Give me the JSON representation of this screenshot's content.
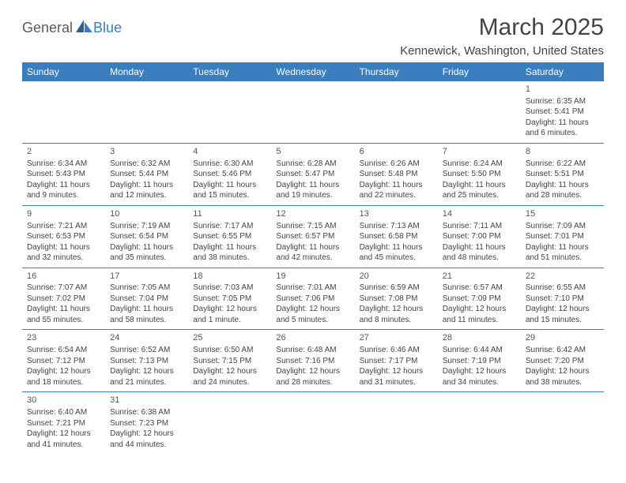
{
  "logo": {
    "part1": "General",
    "part2": "Blue"
  },
  "title": "March 2025",
  "location": "Kennewick, Washington, United States",
  "colors": {
    "header_bg": "#3a7ebf",
    "header_text": "#ffffff",
    "border": "#3a7ebf",
    "body_text": "#444444",
    "logo_gray": "#5a5a5a",
    "logo_blue": "#3a7ebf",
    "page_bg": "#ffffff"
  },
  "typography": {
    "title_fontsize": 30,
    "location_fontsize": 15,
    "header_fontsize": 12,
    "cell_fontsize": 10,
    "daynum_fontsize": 11
  },
  "day_headers": [
    "Sunday",
    "Monday",
    "Tuesday",
    "Wednesday",
    "Thursday",
    "Friday",
    "Saturday"
  ],
  "weeks": [
    [
      null,
      null,
      null,
      null,
      null,
      null,
      {
        "n": "1",
        "sunrise": "Sunrise: 6:35 AM",
        "sunset": "Sunset: 5:41 PM",
        "d1": "Daylight: 11 hours",
        "d2": "and 6 minutes."
      }
    ],
    [
      {
        "n": "2",
        "sunrise": "Sunrise: 6:34 AM",
        "sunset": "Sunset: 5:43 PM",
        "d1": "Daylight: 11 hours",
        "d2": "and 9 minutes."
      },
      {
        "n": "3",
        "sunrise": "Sunrise: 6:32 AM",
        "sunset": "Sunset: 5:44 PM",
        "d1": "Daylight: 11 hours",
        "d2": "and 12 minutes."
      },
      {
        "n": "4",
        "sunrise": "Sunrise: 6:30 AM",
        "sunset": "Sunset: 5:46 PM",
        "d1": "Daylight: 11 hours",
        "d2": "and 15 minutes."
      },
      {
        "n": "5",
        "sunrise": "Sunrise: 6:28 AM",
        "sunset": "Sunset: 5:47 PM",
        "d1": "Daylight: 11 hours",
        "d2": "and 19 minutes."
      },
      {
        "n": "6",
        "sunrise": "Sunrise: 6:26 AM",
        "sunset": "Sunset: 5:48 PM",
        "d1": "Daylight: 11 hours",
        "d2": "and 22 minutes."
      },
      {
        "n": "7",
        "sunrise": "Sunrise: 6:24 AM",
        "sunset": "Sunset: 5:50 PM",
        "d1": "Daylight: 11 hours",
        "d2": "and 25 minutes."
      },
      {
        "n": "8",
        "sunrise": "Sunrise: 6:22 AM",
        "sunset": "Sunset: 5:51 PM",
        "d1": "Daylight: 11 hours",
        "d2": "and 28 minutes."
      }
    ],
    [
      {
        "n": "9",
        "sunrise": "Sunrise: 7:21 AM",
        "sunset": "Sunset: 6:53 PM",
        "d1": "Daylight: 11 hours",
        "d2": "and 32 minutes."
      },
      {
        "n": "10",
        "sunrise": "Sunrise: 7:19 AM",
        "sunset": "Sunset: 6:54 PM",
        "d1": "Daylight: 11 hours",
        "d2": "and 35 minutes."
      },
      {
        "n": "11",
        "sunrise": "Sunrise: 7:17 AM",
        "sunset": "Sunset: 6:55 PM",
        "d1": "Daylight: 11 hours",
        "d2": "and 38 minutes."
      },
      {
        "n": "12",
        "sunrise": "Sunrise: 7:15 AM",
        "sunset": "Sunset: 6:57 PM",
        "d1": "Daylight: 11 hours",
        "d2": "and 42 minutes."
      },
      {
        "n": "13",
        "sunrise": "Sunrise: 7:13 AM",
        "sunset": "Sunset: 6:58 PM",
        "d1": "Daylight: 11 hours",
        "d2": "and 45 minutes."
      },
      {
        "n": "14",
        "sunrise": "Sunrise: 7:11 AM",
        "sunset": "Sunset: 7:00 PM",
        "d1": "Daylight: 11 hours",
        "d2": "and 48 minutes."
      },
      {
        "n": "15",
        "sunrise": "Sunrise: 7:09 AM",
        "sunset": "Sunset: 7:01 PM",
        "d1": "Daylight: 11 hours",
        "d2": "and 51 minutes."
      }
    ],
    [
      {
        "n": "16",
        "sunrise": "Sunrise: 7:07 AM",
        "sunset": "Sunset: 7:02 PM",
        "d1": "Daylight: 11 hours",
        "d2": "and 55 minutes."
      },
      {
        "n": "17",
        "sunrise": "Sunrise: 7:05 AM",
        "sunset": "Sunset: 7:04 PM",
        "d1": "Daylight: 11 hours",
        "d2": "and 58 minutes."
      },
      {
        "n": "18",
        "sunrise": "Sunrise: 7:03 AM",
        "sunset": "Sunset: 7:05 PM",
        "d1": "Daylight: 12 hours",
        "d2": "and 1 minute."
      },
      {
        "n": "19",
        "sunrise": "Sunrise: 7:01 AM",
        "sunset": "Sunset: 7:06 PM",
        "d1": "Daylight: 12 hours",
        "d2": "and 5 minutes."
      },
      {
        "n": "20",
        "sunrise": "Sunrise: 6:59 AM",
        "sunset": "Sunset: 7:08 PM",
        "d1": "Daylight: 12 hours",
        "d2": "and 8 minutes."
      },
      {
        "n": "21",
        "sunrise": "Sunrise: 6:57 AM",
        "sunset": "Sunset: 7:09 PM",
        "d1": "Daylight: 12 hours",
        "d2": "and 11 minutes."
      },
      {
        "n": "22",
        "sunrise": "Sunrise: 6:55 AM",
        "sunset": "Sunset: 7:10 PM",
        "d1": "Daylight: 12 hours",
        "d2": "and 15 minutes."
      }
    ],
    [
      {
        "n": "23",
        "sunrise": "Sunrise: 6:54 AM",
        "sunset": "Sunset: 7:12 PM",
        "d1": "Daylight: 12 hours",
        "d2": "and 18 minutes."
      },
      {
        "n": "24",
        "sunrise": "Sunrise: 6:52 AM",
        "sunset": "Sunset: 7:13 PM",
        "d1": "Daylight: 12 hours",
        "d2": "and 21 minutes."
      },
      {
        "n": "25",
        "sunrise": "Sunrise: 6:50 AM",
        "sunset": "Sunset: 7:15 PM",
        "d1": "Daylight: 12 hours",
        "d2": "and 24 minutes."
      },
      {
        "n": "26",
        "sunrise": "Sunrise: 6:48 AM",
        "sunset": "Sunset: 7:16 PM",
        "d1": "Daylight: 12 hours",
        "d2": "and 28 minutes."
      },
      {
        "n": "27",
        "sunrise": "Sunrise: 6:46 AM",
        "sunset": "Sunset: 7:17 PM",
        "d1": "Daylight: 12 hours",
        "d2": "and 31 minutes."
      },
      {
        "n": "28",
        "sunrise": "Sunrise: 6:44 AM",
        "sunset": "Sunset: 7:19 PM",
        "d1": "Daylight: 12 hours",
        "d2": "and 34 minutes."
      },
      {
        "n": "29",
        "sunrise": "Sunrise: 6:42 AM",
        "sunset": "Sunset: 7:20 PM",
        "d1": "Daylight: 12 hours",
        "d2": "and 38 minutes."
      }
    ],
    [
      {
        "n": "30",
        "sunrise": "Sunrise: 6:40 AM",
        "sunset": "Sunset: 7:21 PM",
        "d1": "Daylight: 12 hours",
        "d2": "and 41 minutes."
      },
      {
        "n": "31",
        "sunrise": "Sunrise: 6:38 AM",
        "sunset": "Sunset: 7:23 PM",
        "d1": "Daylight: 12 hours",
        "d2": "and 44 minutes."
      },
      null,
      null,
      null,
      null,
      null
    ]
  ]
}
